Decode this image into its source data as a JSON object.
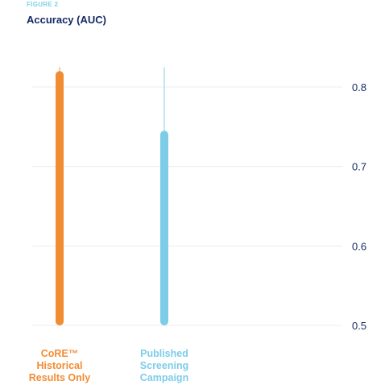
{
  "figure": {
    "label": "FIGURE 2",
    "title": "Accuracy (AUC)"
  },
  "chart_data": {
    "type": "bar",
    "title": "Accuracy (AUC)",
    "xlabel": "",
    "ylabel": "",
    "ylim": [
      0.5,
      0.8
    ],
    "yticks": [
      0.5,
      0.6,
      0.7,
      0.8
    ],
    "ytick_labels": [
      "0.5",
      "0.6",
      "0.7",
      "0.8"
    ],
    "y_axis_position": "right",
    "grid": true,
    "legend": "none",
    "categories": [
      "CoRE™ Historical Results Only",
      "Published Screening Campaign"
    ],
    "category_label_lines": [
      [
        "CoRE™",
        "Historical",
        "Results Only"
      ],
      [
        "Published",
        "Screening",
        "Campaign"
      ]
    ],
    "series": [
      {
        "values": [
          0.82,
          0.745
        ],
        "upper": [
          0.825,
          0.825
        ],
        "colors": [
          "#f28c33",
          "#7dcde8"
        ],
        "whisker_colors": [
          "#f5b47a",
          "#a9e0ee"
        ]
      }
    ]
  }
}
